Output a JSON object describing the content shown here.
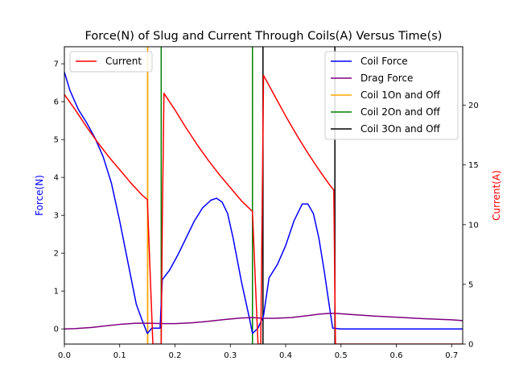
{
  "chart_data": {
    "type": "line",
    "title": "Force(N) of Slug and Current Through Coils(A) Versus Time(s)",
    "ylabel_left": "Force(N)",
    "ylabel_right": "Current(A)",
    "xlabel": "",
    "xlim": [
      0.0,
      0.72
    ],
    "ylim_left": [
      -0.4,
      7.45
    ],
    "ylim_right": [
      0,
      24.9
    ],
    "x_ticks": [
      0.0,
      0.1,
      0.2,
      0.3,
      0.4,
      0.5,
      0.6,
      0.7
    ],
    "y_left_ticks": [
      0,
      1,
      2,
      3,
      4,
      5,
      6,
      7
    ],
    "y_right_ticks": [
      0,
      5,
      10,
      15,
      20
    ],
    "colors": {
      "left_axis_label": "#0000ff",
      "right_axis_label": "#ff0000"
    },
    "legend_left": {
      "placement": "upper-left",
      "entries": [
        {
          "label": "Current",
          "color": "#ff0000"
        }
      ]
    },
    "legend_right": {
      "placement": "upper-right",
      "entries": [
        {
          "label": "Coil Force",
          "color": "#0000ff"
        },
        {
          "label": "Drag Force",
          "color": "#800080"
        },
        {
          "label": "Coil 1On and Off",
          "color": "#ffa500"
        },
        {
          "label": "Coil 2On and Off",
          "color": "#008000"
        },
        {
          "label": "Coil 3On and Off",
          "color": "#000000"
        }
      ]
    },
    "series": [
      {
        "name": "Coil Force",
        "axis": "left",
        "color": "#0000ff",
        "points": [
          [
            0,
            6.78
          ],
          [
            0.01,
            6.3
          ],
          [
            0.025,
            5.8
          ],
          [
            0.04,
            5.45
          ],
          [
            0.055,
            5.05
          ],
          [
            0.07,
            4.55
          ],
          [
            0.085,
            3.85
          ],
          [
            0.1,
            2.85
          ],
          [
            0.115,
            1.75
          ],
          [
            0.13,
            0.65
          ],
          [
            0.14,
            0.25
          ],
          [
            0.15,
            -0.12
          ],
          [
            0.158,
            0.02
          ],
          [
            0.173,
            0.02
          ],
          [
            0.177,
            1.3
          ],
          [
            0.19,
            1.55
          ],
          [
            0.205,
            1.95
          ],
          [
            0.22,
            2.4
          ],
          [
            0.235,
            2.85
          ],
          [
            0.25,
            3.2
          ],
          [
            0.265,
            3.4
          ],
          [
            0.275,
            3.45
          ],
          [
            0.285,
            3.35
          ],
          [
            0.295,
            3.05
          ],
          [
            0.305,
            2.4
          ],
          [
            0.32,
            1.25
          ],
          [
            0.335,
            0.25
          ],
          [
            0.34,
            -0.12
          ],
          [
            0.35,
            0.02
          ],
          [
            0.36,
            0.35
          ],
          [
            0.37,
            1.35
          ],
          [
            0.385,
            1.7
          ],
          [
            0.4,
            2.2
          ],
          [
            0.415,
            2.85
          ],
          [
            0.43,
            3.3
          ],
          [
            0.44,
            3.3
          ],
          [
            0.45,
            3.05
          ],
          [
            0.46,
            2.4
          ],
          [
            0.47,
            1.5
          ],
          [
            0.48,
            0.5
          ],
          [
            0.485,
            0.02
          ],
          [
            0.5,
            0.0
          ],
          [
            0.72,
            0.0
          ]
        ]
      },
      {
        "name": "Drag Force",
        "axis": "left",
        "color": "#800080",
        "points": [
          [
            0,
            0.0
          ],
          [
            0.02,
            0.01
          ],
          [
            0.05,
            0.04
          ],
          [
            0.08,
            0.09
          ],
          [
            0.1,
            0.12
          ],
          [
            0.13,
            0.15
          ],
          [
            0.15,
            0.15
          ],
          [
            0.18,
            0.14
          ],
          [
            0.2,
            0.14
          ],
          [
            0.23,
            0.16
          ],
          [
            0.26,
            0.2
          ],
          [
            0.29,
            0.25
          ],
          [
            0.32,
            0.29
          ],
          [
            0.34,
            0.3
          ],
          [
            0.36,
            0.28
          ],
          [
            0.38,
            0.28
          ],
          [
            0.41,
            0.3
          ],
          [
            0.44,
            0.35
          ],
          [
            0.46,
            0.39
          ],
          [
            0.48,
            0.41
          ],
          [
            0.49,
            0.41
          ],
          [
            0.52,
            0.38
          ],
          [
            0.56,
            0.34
          ],
          [
            0.6,
            0.31
          ],
          [
            0.65,
            0.27
          ],
          [
            0.7,
            0.24
          ],
          [
            0.72,
            0.22
          ]
        ]
      },
      {
        "name": "Current",
        "axis": "right",
        "color": "#ff0000",
        "points": [
          [
            0,
            20.9
          ],
          [
            0.02,
            19.6
          ],
          [
            0.04,
            18.2
          ],
          [
            0.06,
            16.9
          ],
          [
            0.08,
            15.7
          ],
          [
            0.1,
            14.6
          ],
          [
            0.12,
            13.5
          ],
          [
            0.14,
            12.5
          ],
          [
            0.15,
            12.1
          ],
          [
            0.155,
            6.0
          ],
          [
            0.16,
            0.0
          ],
          [
            0.175,
            0.0
          ],
          [
            0.177,
            10.0
          ],
          [
            0.18,
            21.0
          ],
          [
            0.2,
            19.6
          ],
          [
            0.22,
            18.1
          ],
          [
            0.24,
            16.7
          ],
          [
            0.26,
            15.4
          ],
          [
            0.28,
            14.2
          ],
          [
            0.3,
            13.1
          ],
          [
            0.32,
            12.0
          ],
          [
            0.34,
            11.1
          ],
          [
            0.345,
            5.5
          ],
          [
            0.35,
            0.0
          ],
          [
            0.355,
            0.0
          ],
          [
            0.36,
            22.5
          ],
          [
            0.38,
            20.8
          ],
          [
            0.4,
            19.1
          ],
          [
            0.42,
            17.5
          ],
          [
            0.44,
            16.0
          ],
          [
            0.46,
            14.6
          ],
          [
            0.48,
            13.3
          ],
          [
            0.487,
            12.9
          ],
          [
            0.49,
            0.0
          ],
          [
            0.72,
            0.0
          ]
        ]
      }
    ],
    "vlines": [
      {
        "name": "Coil 1On and Off",
        "color": "#ffa500",
        "x": [
          0.1505,
          0.1505
        ]
      },
      {
        "name": "Coil 2On and Off",
        "color": "#008000",
        "x": [
          0.175,
          0.34
        ]
      },
      {
        "name": "Coil 3On and Off",
        "color": "#000000",
        "x": [
          0.359,
          0.489
        ]
      }
    ]
  }
}
